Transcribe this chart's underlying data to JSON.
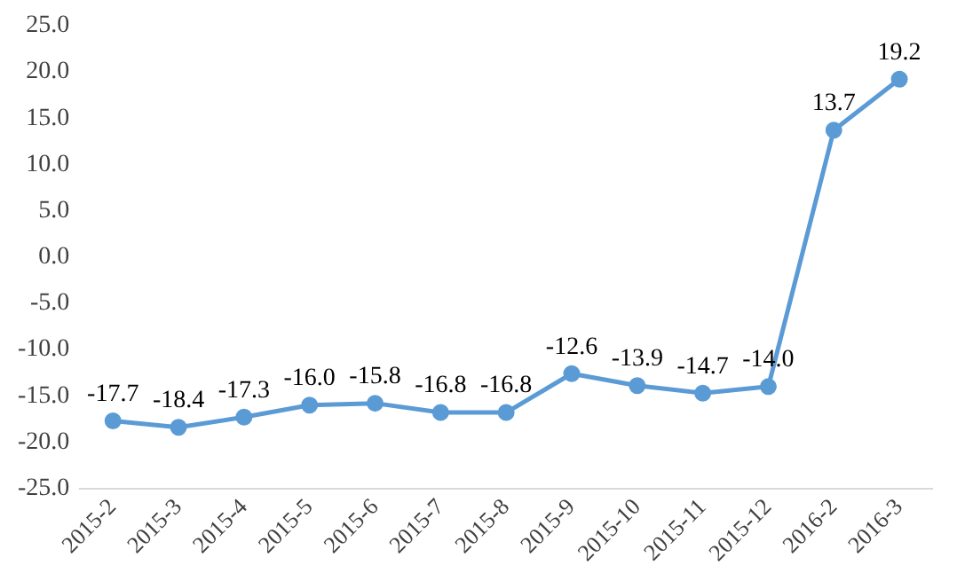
{
  "chart_data": {
    "type": "line",
    "categories": [
      "2015-2",
      "2015-3",
      "2015-4",
      "2015-5",
      "2015-6",
      "2015-7",
      "2015-8",
      "2015-9",
      "2015-10",
      "2015-11",
      "2015-12",
      "2016-2",
      "2016-3"
    ],
    "series": [
      {
        "color": "#5b9bd5",
        "values": [
          -17.7,
          -18.4,
          -17.3,
          -16.0,
          -15.8,
          -16.8,
          -16.8,
          -12.6,
          -13.9,
          -14.7,
          -14.0,
          13.7,
          19.2
        ],
        "value_labels": [
          "-17.7",
          "-18.4",
          "-17.3",
          "-16.0",
          "-15.8",
          "-16.8",
          "-16.8",
          "-12.6",
          "-13.9",
          "-14.7",
          "-14.0",
          "13.7",
          "19.2"
        ]
      }
    ],
    "ylim": [
      -25,
      25
    ],
    "yticks": [
      {
        "value": -25,
        "label": "-25.0"
      },
      {
        "value": -20,
        "label": "-20.0"
      },
      {
        "value": -15,
        "label": "-15.0"
      },
      {
        "value": -10,
        "label": "-10.0"
      },
      {
        "value": -5,
        "label": "-5.0"
      },
      {
        "value": 0,
        "label": "0.0"
      },
      {
        "value": 5,
        "label": "5.0"
      },
      {
        "value": 10,
        "label": "10.0"
      },
      {
        "value": 15,
        "label": "15.0"
      },
      {
        "value": 20,
        "label": "20.0"
      },
      {
        "value": 25,
        "label": "25.0"
      }
    ],
    "grid": false,
    "legend": false,
    "marker": "circle",
    "line_style": "solid"
  }
}
